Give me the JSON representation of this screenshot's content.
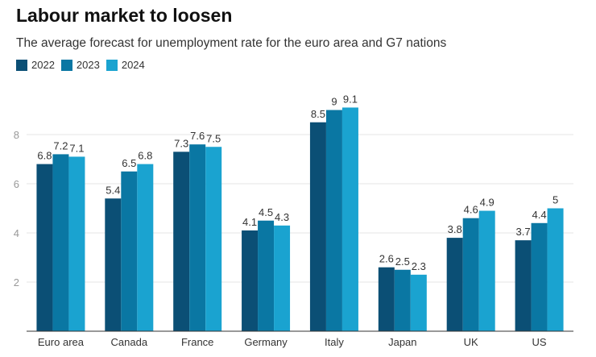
{
  "chart_data": {
    "type": "bar",
    "title": "Labour market to loosen",
    "subtitle": "The average forecast for unemployment rate for the euro area and G7 nations",
    "categories": [
      "Euro area",
      "Canada",
      "France",
      "Germany",
      "Italy",
      "Japan",
      "UK",
      "US"
    ],
    "series": [
      {
        "name": "2022",
        "color": "#0b4f75",
        "values": [
          6.8,
          5.4,
          7.3,
          4.1,
          8.5,
          2.6,
          3.8,
          3.7
        ]
      },
      {
        "name": "2023",
        "color": "#0a77a3",
        "values": [
          7.2,
          6.5,
          7.6,
          4.5,
          9,
          2.5,
          4.6,
          4.4
        ]
      },
      {
        "name": "2024",
        "color": "#1aa3d0",
        "values": [
          7.1,
          6.8,
          7.5,
          4.3,
          9.1,
          2.3,
          4.9,
          5
        ]
      }
    ],
    "yticks": [
      "2",
      "4",
      "6",
      "8"
    ],
    "ylim": [
      0,
      10
    ],
    "grid": true,
    "legend": "top-left",
    "data_labels": true
  }
}
